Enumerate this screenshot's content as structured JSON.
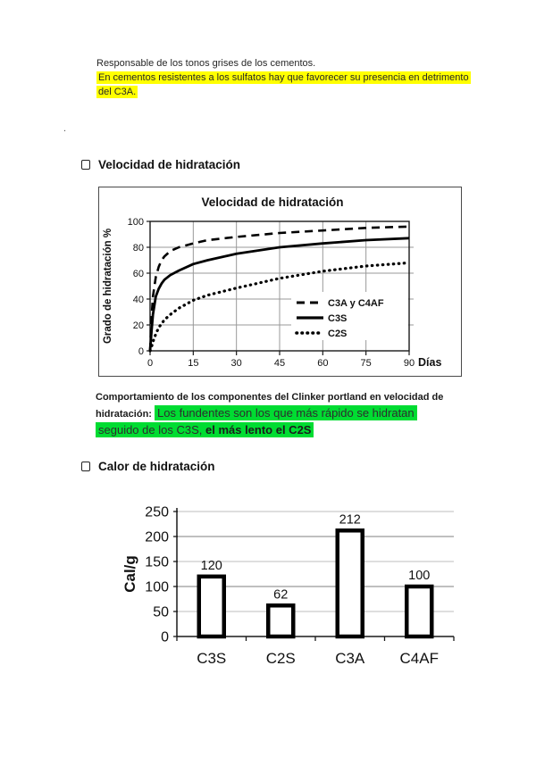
{
  "page": {
    "intro_line": "Responsable de los tonos grises de los cementos.",
    "intro_highlight_line1": "En cementos resistentes a los sulfatos hay que favorecer su presencia en detrimento",
    "intro_highlight_line2": "del C3A.",
    "stray_dot": ".",
    "section1_title": "Velocidad de hidratación",
    "section2_title": "Calor de hidratación",
    "caption_bold_line1": "Comportamiento de los componentes del Clinker portland en velocidad de",
    "caption_bold_label": "hidratación:",
    "caption_green_line1": "Los fundentes son los que más rápido se hidratan",
    "caption_green_line2": "seguido de los C3S,",
    "caption_green_line2_bold": "el más lento el C2S"
  },
  "colors": {
    "yellow_highlight": "#ffff00",
    "green_highlight": "#00dc32",
    "text": "#262626",
    "chart_line": "#000000",
    "grid_dark": "#999999",
    "grid_light": "#c9c9c9",
    "frame": "#4a4a4a"
  },
  "chart_data": [
    {
      "type": "line",
      "title": "Velocidad de hidratación",
      "xlabel": "Días",
      "ylabel": "Grado de hidratación %",
      "xlim": [
        0,
        90
      ],
      "ylim": [
        0,
        100
      ],
      "x_ticks": [
        0,
        15,
        30,
        45,
        60,
        75,
        90
      ],
      "y_ticks": [
        0,
        20,
        40,
        60,
        80,
        100
      ],
      "grid": true,
      "legend_position": "inside-right",
      "series": [
        {
          "name": "C3A y C4AF",
          "style": "dashed",
          "x": [
            0,
            0.5,
            1,
            2,
            3,
            4,
            5,
            7,
            10,
            15,
            20,
            30,
            45,
            60,
            75,
            90
          ],
          "values": [
            0,
            25,
            42,
            57,
            65,
            70,
            73,
            77,
            80,
            83,
            85.5,
            88,
            91,
            93,
            95,
            96
          ]
        },
        {
          "name": "C3S",
          "style": "solid",
          "x": [
            0,
            0.5,
            1,
            2,
            3,
            4,
            5,
            7,
            10,
            15,
            20,
            30,
            45,
            60,
            75,
            90
          ],
          "values": [
            0,
            15,
            28,
            42,
            48,
            52,
            55,
            58.5,
            62,
            67,
            70,
            75,
            80,
            83,
            85.5,
            87
          ]
        },
        {
          "name": "C2S",
          "style": "dotted",
          "x": [
            0,
            0.5,
            1,
            2,
            3,
            4,
            5,
            7,
            10,
            15,
            20,
            30,
            45,
            60,
            75,
            90
          ],
          "values": [
            0,
            3,
            7,
            13,
            18,
            21,
            24,
            28,
            33,
            39,
            43,
            48.5,
            56,
            61.5,
            65.5,
            68
          ]
        }
      ]
    },
    {
      "type": "bar",
      "categories": [
        "C3S",
        "C2S",
        "C3A",
        "C4AF"
      ],
      "values": [
        120,
        62,
        212,
        100
      ],
      "title": "",
      "xlabel": "",
      "ylabel": "Cal/g",
      "ylim": [
        0,
        250
      ],
      "y_ticks": [
        0,
        50,
        100,
        150,
        200,
        250
      ],
      "grid": true,
      "bar_fill": "#ffffff",
      "bar_stroke": "#000000"
    }
  ]
}
